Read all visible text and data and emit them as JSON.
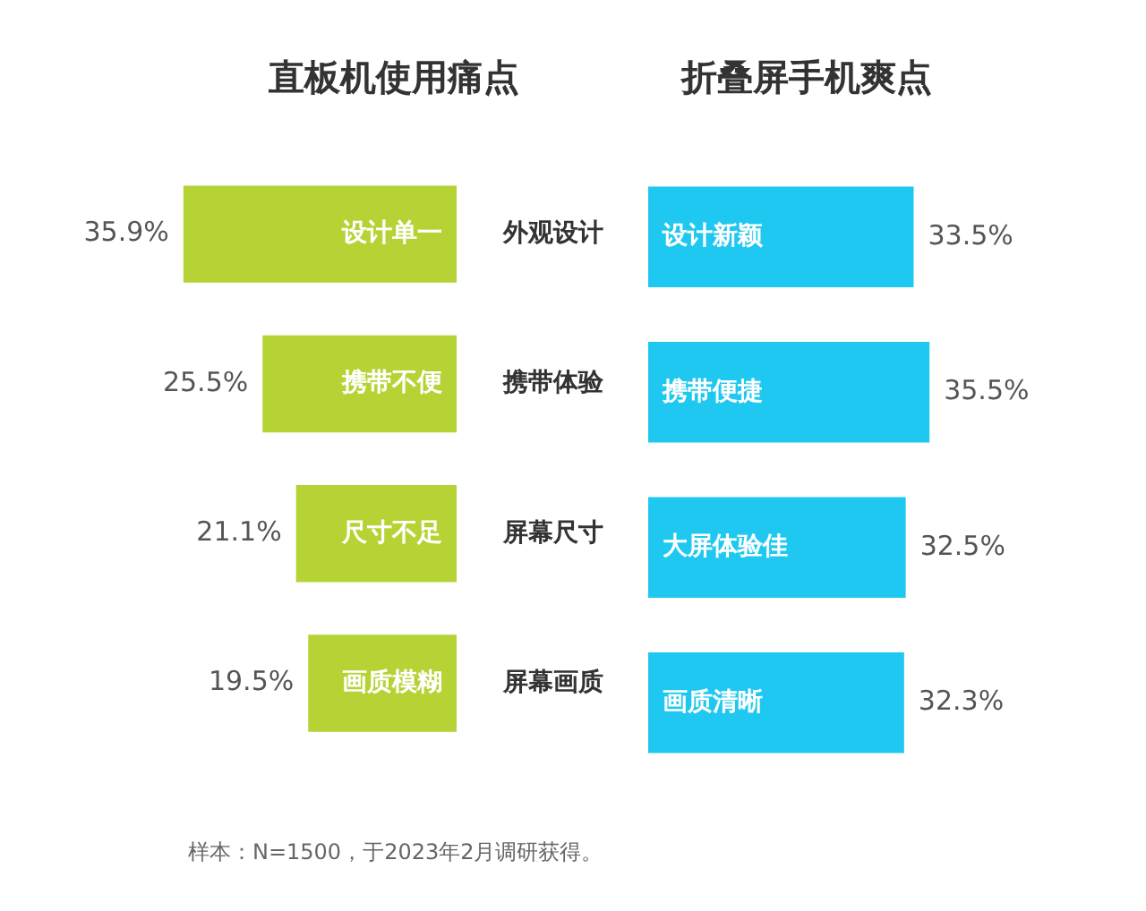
{
  "chart_data": [
    {
      "type": "bar",
      "orientation": "horizontal",
      "title": "直板机使用痛点",
      "categories": [
        "外观设计",
        "携带体验",
        "屏幕尺寸",
        "屏幕画质"
      ],
      "values": [
        35.9,
        25.5,
        21.1,
        19.5
      ],
      "color": "#b5d334",
      "value_labels": [
        "35.9%",
        "25.5%",
        "21.1%",
        "19.5%"
      ],
      "tick_labels": "y",
      "annotations": [
        "设计单一",
        "携带不便",
        "尺寸不足",
        "画质模糊",
        "样本：N=1500，于2023年2月调研获得。"
      ]
    },
    {
      "type": "bar",
      "orientation": "horizontal",
      "title": "折叠屏手机爽点",
      "categories": [
        null,
        null,
        null,
        null
      ],
      "values": [
        33.5,
        35.5,
        32.5,
        32.3
      ],
      "color": "#1ec8f0",
      "value_labels": [
        "33.5%",
        "35.5%",
        "32.5%",
        "32.3%"
      ],
      "tick_labels": false,
      "annotations": [
        "设计新颖",
        "携带便捷",
        "大屏体验佳",
        "画质清晰"
      ]
    }
  ]
}
